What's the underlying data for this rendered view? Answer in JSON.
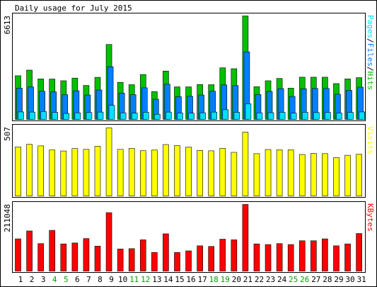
{
  "title": "Daily usage for July 2015",
  "colors": {
    "background": "#FFFFFF",
    "frame": "#000000",
    "hits": "#00C000",
    "files": "#0080FF",
    "pages": "#00E0FF",
    "visits": "#FFFF00",
    "kbytes": "#FF0000",
    "weekend_day": "#00A000",
    "weekday": "#000000",
    "bar_outline": "#000000"
  },
  "chart_data": [
    {
      "type": "bar",
      "panel": "pages-files-hits",
      "title": "Daily usage for July 2015",
      "ylabel_parts": [
        {
          "text": "Pages",
          "color": "#00E0FF"
        },
        {
          "text": "/",
          "color": "#000000"
        },
        {
          "text": "Files",
          "color": "#0080FF"
        },
        {
          "text": "/",
          "color": "#000000"
        },
        {
          "text": "Hits",
          "color": "#00C000"
        }
      ],
      "max_label": "6613",
      "ylim": [
        0,
        6613
      ],
      "categories": [
        "1",
        "2",
        "3",
        "4",
        "5",
        "6",
        "7",
        "8",
        "9",
        "10",
        "11",
        "12",
        "13",
        "14",
        "15",
        "16",
        "17",
        "18",
        "19",
        "20",
        "21",
        "22",
        "23",
        "24",
        "25",
        "26",
        "27",
        "28",
        "29",
        "30",
        "31"
      ],
      "weekend_days": [
        "4",
        "5",
        "11",
        "12",
        "18",
        "19",
        "25",
        "26"
      ],
      "series": [
        {
          "name": "Hits",
          "values": [
            2790,
            3150,
            2590,
            2580,
            2470,
            2640,
            2170,
            2690,
            4790,
            2370,
            2220,
            2870,
            1780,
            3090,
            2080,
            2080,
            2230,
            2220,
            3300,
            3240,
            6613,
            2090,
            2470,
            2620,
            2000,
            2700,
            2700,
            2700,
            2290,
            2590,
            2670
          ]
        },
        {
          "name": "Files",
          "values": [
            2000,
            2080,
            1800,
            1760,
            1580,
            1830,
            1560,
            1880,
            3370,
            1680,
            1580,
            2020,
            1290,
            2250,
            1450,
            1480,
            1560,
            1800,
            2210,
            2160,
            4320,
            1590,
            1790,
            1970,
            1470,
            1960,
            1980,
            1980,
            1610,
            1860,
            2060
          ]
        },
        {
          "name": "Pages",
          "values": [
            480,
            470,
            500,
            450,
            380,
            420,
            440,
            470,
            900,
            420,
            400,
            460,
            330,
            470,
            410,
            400,
            420,
            470,
            620,
            460,
            1000,
            420,
            430,
            460,
            400,
            460,
            440,
            450,
            410,
            450,
            480
          ]
        }
      ]
    },
    {
      "type": "bar",
      "panel": "visits",
      "ylabel": "Visits",
      "max_label": "507",
      "ylim": [
        0,
        507
      ],
      "categories": [
        "1",
        "2",
        "3",
        "4",
        "5",
        "6",
        "7",
        "8",
        "9",
        "10",
        "11",
        "12",
        "13",
        "14",
        "15",
        "16",
        "17",
        "18",
        "19",
        "20",
        "21",
        "22",
        "23",
        "24",
        "25",
        "26",
        "27",
        "28",
        "29",
        "30",
        "31"
      ],
      "series": [
        {
          "name": "Visits",
          "values": [
            365,
            385,
            373,
            343,
            335,
            353,
            347,
            370,
            507,
            347,
            355,
            337,
            342,
            383,
            375,
            364,
            339,
            336,
            354,
            325,
            475,
            315,
            346,
            344,
            344,
            309,
            317,
            315,
            286,
            303,
            311
          ]
        }
      ]
    },
    {
      "type": "bar",
      "panel": "kbytes",
      "ylabel": "KBytes",
      "max_label": "211048",
      "ylim": [
        0,
        211048
      ],
      "categories": [
        "1",
        "2",
        "3",
        "4",
        "5",
        "6",
        "7",
        "8",
        "9",
        "10",
        "11",
        "12",
        "13",
        "14",
        "15",
        "16",
        "17",
        "18",
        "19",
        "20",
        "21",
        "22",
        "23",
        "24",
        "25",
        "26",
        "27",
        "28",
        "29",
        "30",
        "31"
      ],
      "series": [
        {
          "name": "KBytes",
          "values": [
            102000,
            127000,
            87000,
            129000,
            86000,
            89000,
            103000,
            79000,
            185000,
            70000,
            71000,
            99000,
            59000,
            118000,
            59000,
            64000,
            80000,
            78000,
            101000,
            99000,
            211048,
            86000,
            84000,
            87000,
            84000,
            96000,
            96000,
            102000,
            80000,
            86000,
            119000
          ]
        }
      ]
    }
  ]
}
